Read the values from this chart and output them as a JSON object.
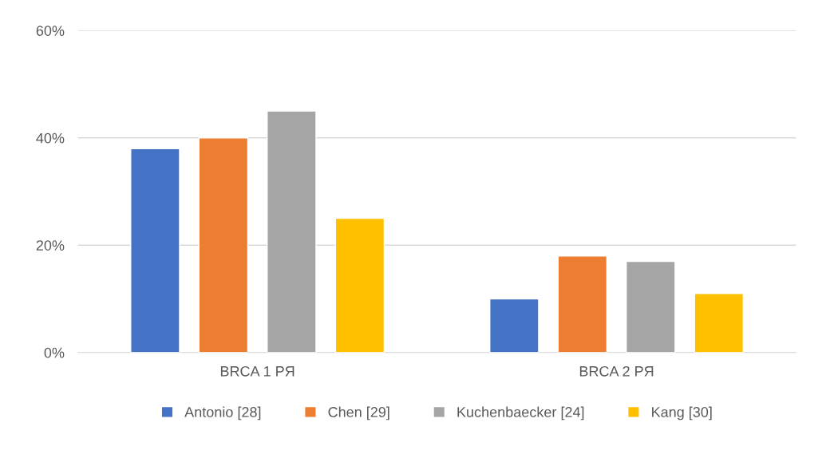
{
  "chart_data": {
    "type": "bar",
    "categories": [
      "BRCA 1 PЯ",
      "BRCA 2 PЯ"
    ],
    "series": [
      {
        "name": "Antonio [28]",
        "color": "#4472c4",
        "values": [
          38,
          10
        ]
      },
      {
        "name": "Chen [29]",
        "color": "#ed7d31",
        "values": [
          40,
          18
        ]
      },
      {
        "name": "Kuchenbaecker [24]",
        "color": "#a5a5a5",
        "values": [
          45,
          17
        ]
      },
      {
        "name": "Kang [30]",
        "color": "#ffc000",
        "values": [
          25,
          11
        ]
      }
    ],
    "ylim": [
      0,
      60
    ],
    "yticks": [
      {
        "value": 0,
        "label": "0%"
      },
      {
        "value": 20,
        "label": "20%"
      },
      {
        "value": 40,
        "label": "40%"
      },
      {
        "value": 60,
        "label": "60%"
      }
    ],
    "grid": "y",
    "legend": "bottom"
  }
}
